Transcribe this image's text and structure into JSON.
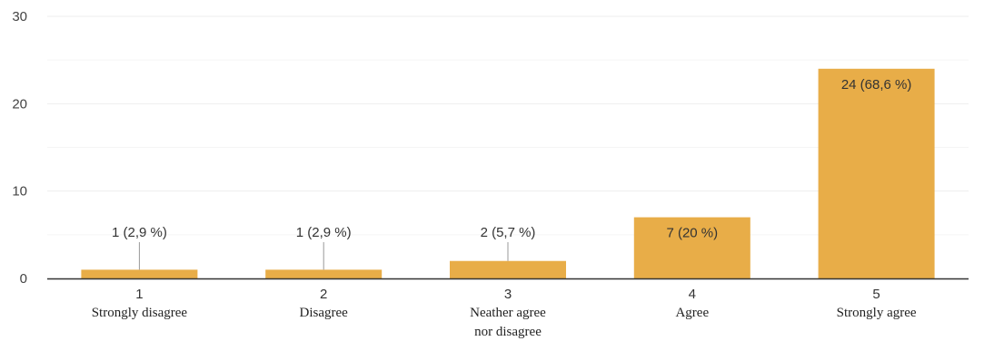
{
  "chart_data": {
    "type": "bar",
    "categories": [
      "1",
      "2",
      "3",
      "4",
      "5"
    ],
    "category_labels": [
      [
        "Strongly disagree"
      ],
      [
        "Disagree"
      ],
      [
        "Neather agree",
        "nor disagree"
      ],
      [
        "Agree"
      ],
      [
        "Strongly agree"
      ]
    ],
    "values": [
      1,
      1,
      2,
      7,
      24
    ],
    "data_labels": [
      "1 (2,9 %)",
      "1 (2,9 %)",
      "2 (5,7 %)",
      "7 (20 %)",
      "24 (68,6 %)"
    ],
    "y_ticks": [
      0,
      10,
      20,
      30
    ],
    "ylim": [
      0,
      30
    ],
    "grid": true,
    "title": "",
    "xlabel": "",
    "ylabel": "",
    "colors": {
      "bar": "#E8AD48",
      "grid": "#EEEEEE",
      "axis": "#333333",
      "leader": "#999999"
    }
  }
}
